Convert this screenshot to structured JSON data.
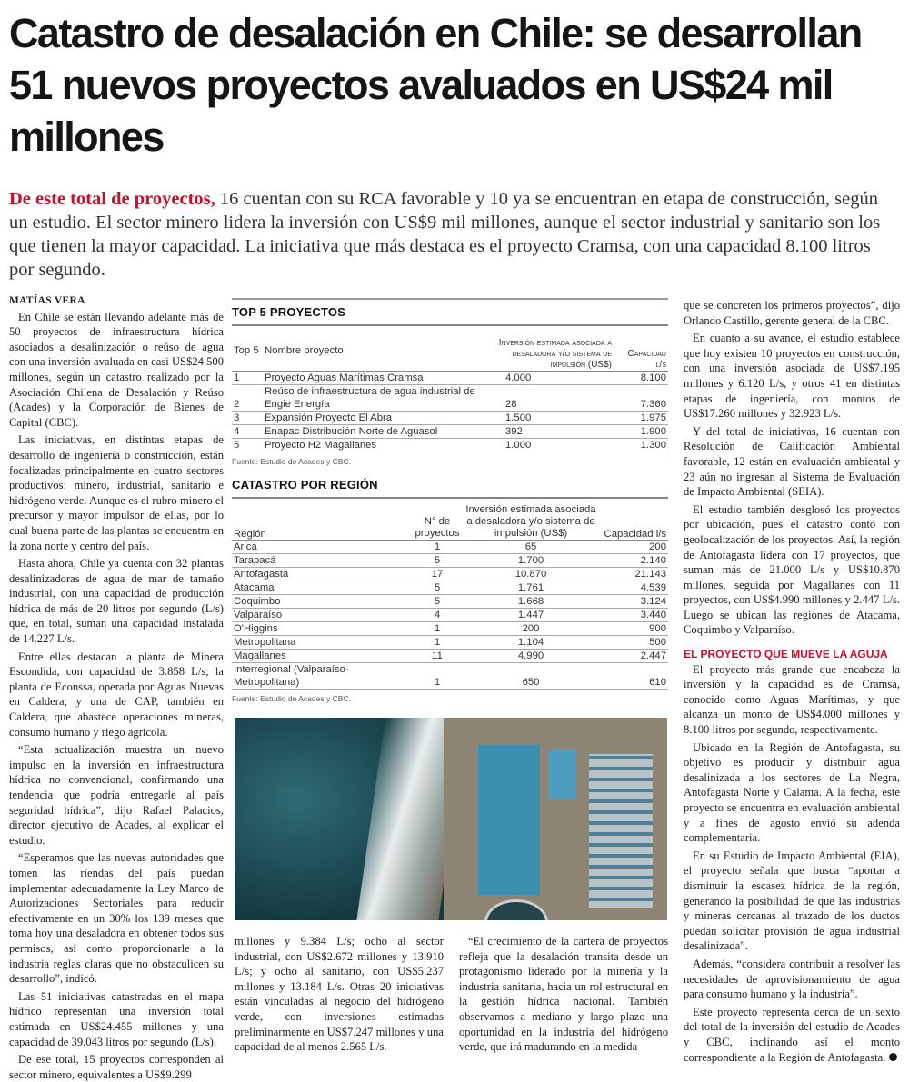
{
  "headline": "Catastro de desalación en Chile: se desarrollan 51 nuevos proyectos avaluados en US$24 mil millones",
  "lede": {
    "kicker": "De este total de proyectos,",
    "text": " 16 cuentan con su RCA favorable y 10 ya se encuentran en etapa de construcción, según un estudio. El sector minero lidera la inversión con US$9 mil millones, aunque el sector industrial y sanitario son los que tienen la mayor capacidad. La iniciativa que más destaca es el proyecto Cramsa, con una capacidad 8.100 litros por segundo."
  },
  "byline": "MATÍAS VERA",
  "left_paragraphs": [
    "En Chile se están llevando adelante más de 50 proyectos de infraestructura hídrica asociados a desalinización o reúso de agua con una inversión avaluada en casi US$24.500 millones, según un catastro realizado por la Asociación Chilena de Desalación y Reúso (Acades) y la Corporación de Bienes de Capital (CBC).",
    "Las iniciativas, en distintas etapas de desarrollo de ingeniería o construcción, están focalizadas principalmente en cuatro sectores productivos: minero, industrial, sanitario e hidrógeno verde. Aunque es el rubro minero el precursor y mayor impulsor de ellas, por lo cual buena parte de las plantas se encuentra en la zona norte y centro del país.",
    "Hasta ahora, Chile ya cuenta con 32 plantas desalinizadoras de agua de mar de tamaño industrial, con una capacidad de producción hídrica de más de 20 litros por segundo (L/s) que, en total, suman una capacidad instalada de 14.227 L/s.",
    "Entre ellas destacan la planta de Minera Escondida, con capacidad de 3.858 L/s; la planta de Econssa, operada por Aguas Nuevas en Caldera; y una de CAP, también en Caldera, que abastece operaciones mineras, consumo humano y riego agrícola.",
    "“Esta actualización muestra un nuevo impulso en la inversión en infraestructura hídrica no convencional, confirmando una tendencia que podría entregarle al país seguridad hídrica”, dijo Rafael Palacios, director ejecutivo de Acades, al explicar el estudio.",
    "“Esperamos que las nuevas autoridades que tomen las riendas del país puedan implementar adecuadamente la Ley Marco de Autorizaciones Sectoriales para reducir efectivamente en un 30% los 139 meses que toma hoy una desaladora en obtener todos sus permisos, así como proporcionarle a la industria reglas claras que no obstaculicen su desarrollo”, indicó.",
    "Las 51 iniciativas catastradas en el mapa hídrico representan una inversión total estimada en US$24.455 millones y una capacidad de 39.043 litros por segundo (L/s).",
    "De ese total, 15 proyectos corresponden al sector minero, equivalentes a US$9.299"
  ],
  "mid_a": "millones y 9.384 L/s; ocho al sector industrial, con US$2.672 millones y 13.910 L/s; y ocho al sanitario, con US$5.237 millones y 13.184 L/s. Otras 20 iniciativas están vinculadas al negocio del hidrógeno verde, con inversiones estimadas preliminarmente en US$7.247 millones y una capacidad de al menos 2.565 L/s.",
  "mid_b": "“El crecimiento de la cartera de proyectos refleja que la desalación transita desde un protagonismo liderado por la minería y la industria sanitaria, hacia un rol estructural en la gestión hídrica nacional. También observamos a mediano y largo plazo una oportunidad en la industria del hidrógeno verde, que irá madurando en la medida",
  "right_paragraphs": [
    "que se concreten los primeros proyectos”, dijo Orlando Castillo, gerente general de la CBC.",
    "En cuanto a su avance, el estudio establece que hoy existen 10 proyectos en construcción, con una inversión asociada de US$7.195 millones y 6.120 L/s, y otros 41 en distintas etapas de ingeniería, con montos de US$17.260 millones y 32.923 L/s.",
    "Y del total de iniciativas, 16 cuentan con Resolución de Calificación Ambiental favorable, 12 están en evaluación ambiental y 23 aún no ingresan al Sistema de Evaluación de Impacto Ambiental (SEIA).",
    "El estudio también desglosó los proyectos por ubicación, pues el catastro contó con geolocalización de los proyectos. Así, la región de Antofagasta lidera con 17 proyectos, que suman más de 21.000 L/s y US$10.870 millones, seguida por Magallanes con 11 proyectos, con US$4.990 millones y 2.447 L/s. Luego se ubican las regiones de Atacama, Coquimbo y Valparaíso."
  ],
  "subhead": "EL PROYECTO QUE MUEVE LA AGUJA",
  "right_paragraphs_2": [
    "El proyecto más grande que encabeza la inversión y la capacidad es de Cramsa, conocido como Aguas Marítimas, y que alcanza un monto de US$4.000 millones y 8.100 litros por segundo, respectivamente.",
    "Ubicado en la Región de Antofagasta, su objetivo es producir y distribuir agua desalinizada a los sectores de La Negra, Antofagasta Norte y Calama. A la fecha, este proyecto se encuentra en evaluación ambiental y a fines de agosto envió su adenda complementaria.",
    "En su Estudio de Impacto Ambiental (EIA), el proyecto señala que busca “aportar a disminuir la escasez hídrica de la región, generando la posibilidad de que las industrias y mineras cercanas al trazado de los ductos puedan solicitar provisión de agua industrial desalinizada”.",
    "Además, “considera contribuir a resolver las necesidades de aprovisionamiento de agua para consumo humano y la industria”.",
    "Este proyecto representa cerca de un sexto del total de la inversión del estudio de Acades y CBC, inclinando así el monto correspondiente a la Región de Antofagasta."
  ],
  "top5": {
    "title": "TOP 5 PROYECTOS",
    "headers": [
      "Top 5",
      "Nombre proyecto",
      "Inversión estimada asociada a desaladora y/o sistema de impulsión (US$)",
      "Capacidad l/s"
    ],
    "rows": [
      [
        "1",
        "Proyecto Aguas Marítimas Cramsa",
        "4.000",
        "8.100"
      ],
      [
        "2",
        "Reúso de infraestructura de agua industrial de Engie Energía",
        "28",
        "7.360"
      ],
      [
        "3",
        "Expansión Proyecto El Abra",
        "1.500",
        "1.975"
      ],
      [
        "4",
        "Enapac Distribución Norte de Aguasol",
        "392",
        "1.900"
      ],
      [
        "5",
        "Proyecto H2 Magallanes",
        "1.000",
        "1.300"
      ]
    ],
    "source": "Fuente: Estudio de Acades y CBC."
  },
  "region": {
    "title": "CATASTRO POR REGIÓN",
    "headers": [
      "Región",
      "N° de proyectos",
      "Inversión estimada asociada a desaladora y/o sistema de impulsión (US$)",
      "Capacidad l/s"
    ],
    "rows": [
      [
        "Arica",
        "1",
        "65",
        "200"
      ],
      [
        "Tarapacá",
        "5",
        "1.700",
        "2.140"
      ],
      [
        "Antofagasta",
        "17",
        "10.870",
        "21.143"
      ],
      [
        "Atacama",
        "5",
        "1.761",
        "4.539"
      ],
      [
        "Coquimbo",
        "5",
        "1.668",
        "3.124"
      ],
      [
        "Valparaíso",
        "4",
        "1.447",
        "3.440"
      ],
      [
        "O'Higgins",
        "1",
        "200",
        "900"
      ],
      [
        "Metropolitana",
        "1",
        "1.104",
        "500"
      ],
      [
        "Magallanes",
        "11",
        "4.990",
        "2.447"
      ],
      [
        "Interregional (Valparaíso- Metropolitana)",
        "1",
        "650",
        "610"
      ]
    ],
    "source": "Fuente: Estudio de Acades y CBC."
  },
  "colors": {
    "accent": "#c8102e"
  }
}
